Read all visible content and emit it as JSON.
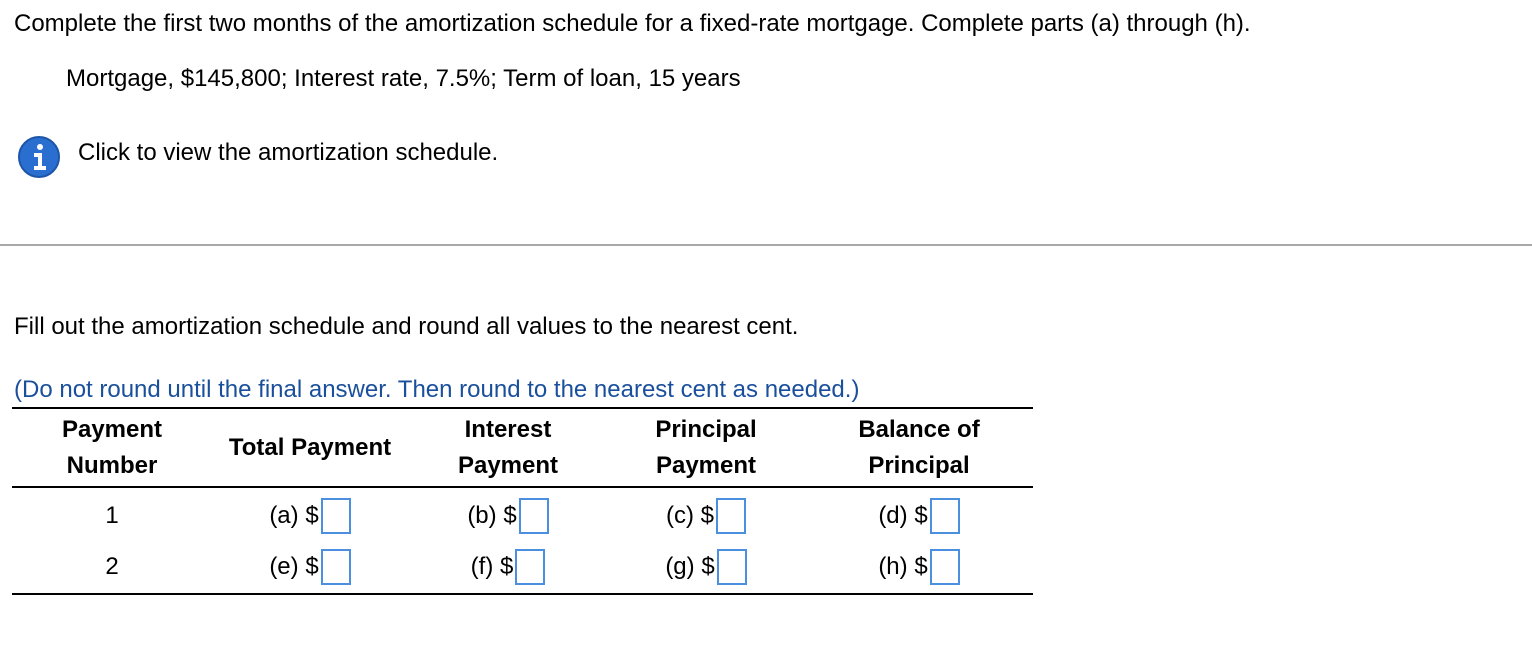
{
  "question": {
    "prompt": "Complete the first two months of the amortization schedule for a fixed-rate mortgage. Complete parts (a) through (h).",
    "given": "Mortgage, $145,800; Interest rate, 7.5%; Term of loan, 15 years",
    "info_link": "Click to view the amortization schedule."
  },
  "instructions": "Fill out the amortization schedule and round all values to the nearest cent.",
  "note": "(Do not round until the final answer. Then round to the nearest cent as needed.)",
  "table": {
    "header": [
      [
        "Payment",
        "Number"
      ],
      [
        "Total Payment"
      ],
      [
        "Interest",
        "Payment"
      ],
      [
        "Principal",
        "Payment"
      ],
      [
        "Balance of",
        "Principal"
      ]
    ],
    "rows": [
      [
        "1",
        "(a) $",
        "(b) $",
        "(c) $",
        "(d) $"
      ],
      [
        "2",
        "(e) $",
        "(f) $",
        "(g) $",
        "(h) $"
      ]
    ]
  }
}
